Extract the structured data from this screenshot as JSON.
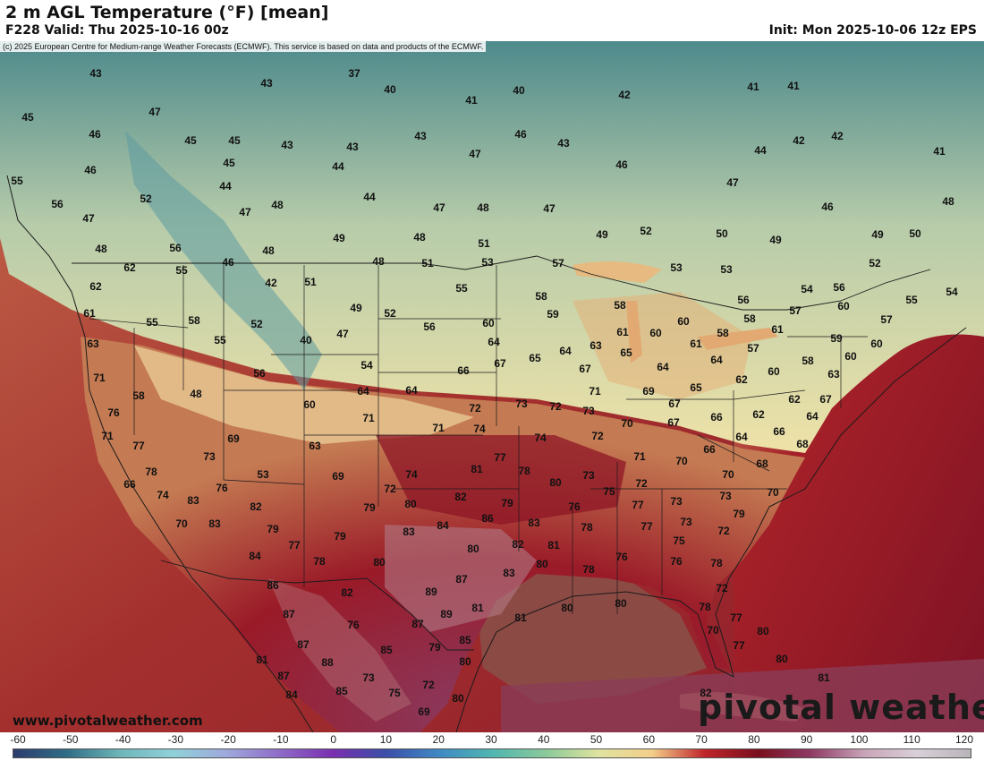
{
  "header": {
    "title": "2 m AGL Temperature (°F) [mean]",
    "valid": "F228 Valid: Thu 2025-10-16 00z",
    "init": "Init: Mon 2025-10-06 12z EPS"
  },
  "copyright": "(c) 2025 European Centre for Medium-range Weather Forecasts (ECMWF). This service is based on data and products of the ECMWF.",
  "footer": {
    "website": "www.pivotalweather.com",
    "logo": "pivotal weather"
  },
  "colors": {
    "ocean_atlantic": "#8a1624",
    "ocean_pacific": "#9a2a2e",
    "gulf": "#8c4a44",
    "cold": "#3f7a86",
    "cool": "#cfd6a0",
    "mild": "#f0e2a6",
    "warm": "#a0141c",
    "hot": "#8e3a5e"
  },
  "colorbar": {
    "labels": [
      "-60",
      "-50",
      "-40",
      "-30",
      "-20",
      "-10",
      "0",
      "10",
      "20",
      "30",
      "40",
      "50",
      "60",
      "70",
      "80",
      "90",
      "100",
      "110",
      "120"
    ],
    "stops": [
      "#2c3b6e",
      "#2f6e86",
      "#6fb5b8",
      "#8fd1d8",
      "#9fa9dc",
      "#8e6cc8",
      "#7a2fb0",
      "#3a4ea8",
      "#3f88c4",
      "#4fb6b0",
      "#8ac99a",
      "#dfe3a0",
      "#f3cf8a",
      "#c0252a",
      "#7a0e1e",
      "#8e3a64",
      "#c9a4b8",
      "#d9d0d8",
      "#b8b4b8"
    ]
  },
  "map": {
    "temperature_labels": [
      [
        "43",
        107,
        82
      ],
      [
        "37",
        396,
        82
      ],
      [
        "43",
        298,
        93
      ],
      [
        "40",
        436,
        100
      ],
      [
        "40",
        580,
        101
      ],
      [
        "42",
        698,
        106
      ],
      [
        "41",
        842,
        97
      ],
      [
        "41",
        887,
        96
      ],
      [
        "45",
        31,
        131
      ],
      [
        "47",
        173,
        125
      ],
      [
        "41",
        527,
        112
      ],
      [
        "46",
        106,
        150
      ],
      [
        "45",
        213,
        157
      ],
      [
        "45",
        262,
        157
      ],
      [
        "43",
        321,
        162
      ],
      [
        "43",
        394,
        164
      ],
      [
        "43",
        470,
        152
      ],
      [
        "46",
        582,
        150
      ],
      [
        "43",
        630,
        160
      ],
      [
        "42",
        893,
        157
      ],
      [
        "42",
        936,
        152
      ],
      [
        "41",
        1050,
        169
      ],
      [
        "46",
        101,
        190
      ],
      [
        "45",
        256,
        182
      ],
      [
        "44",
        378,
        186
      ],
      [
        "47",
        531,
        172
      ],
      [
        "46",
        695,
        184
      ],
      [
        "44",
        850,
        168
      ],
      [
        "47",
        819,
        204
      ],
      [
        "55",
        19,
        202
      ],
      [
        "52",
        163,
        222
      ],
      [
        "44",
        252,
        208
      ],
      [
        "44",
        413,
        220
      ],
      [
        "47",
        491,
        232
      ],
      [
        "48",
        540,
        232
      ],
      [
        "47",
        614,
        233
      ],
      [
        "46",
        925,
        231
      ],
      [
        "48",
        1060,
        225
      ],
      [
        "56",
        64,
        228
      ],
      [
        "47",
        99,
        244
      ],
      [
        "47",
        274,
        237
      ],
      [
        "48",
        310,
        229
      ],
      [
        "48",
        113,
        278
      ],
      [
        "56",
        196,
        277
      ],
      [
        "48",
        300,
        280
      ],
      [
        "49",
        379,
        266
      ],
      [
        "48",
        469,
        265
      ],
      [
        "51",
        541,
        272
      ],
      [
        "49",
        673,
        262
      ],
      [
        "52",
        722,
        258
      ],
      [
        "50",
        807,
        261
      ],
      [
        "49",
        867,
        268
      ],
      [
        "49",
        981,
        262
      ],
      [
        "50",
        1023,
        261
      ],
      [
        "62",
        145,
        299
      ],
      [
        "55",
        203,
        302
      ],
      [
        "46",
        255,
        293
      ],
      [
        "48",
        423,
        292
      ],
      [
        "51",
        478,
        294
      ],
      [
        "53",
        545,
        293
      ],
      [
        "57",
        624,
        294
      ],
      [
        "53",
        756,
        299
      ],
      [
        "53",
        812,
        301
      ],
      [
        "52",
        978,
        294
      ],
      [
        "62",
        107,
        320
      ],
      [
        "42",
        303,
        316
      ],
      [
        "51",
        347,
        315
      ],
      [
        "55",
        516,
        322
      ],
      [
        "58",
        605,
        331
      ],
      [
        "54",
        902,
        323
      ],
      [
        "56",
        938,
        321
      ],
      [
        "55",
        1019,
        335
      ],
      [
        "54",
        1064,
        326
      ],
      [
        "61",
        100,
        350
      ],
      [
        "55",
        170,
        360
      ],
      [
        "58",
        217,
        358
      ],
      [
        "52",
        287,
        362
      ],
      [
        "49",
        398,
        344
      ],
      [
        "52",
        436,
        350
      ],
      [
        "56",
        480,
        365
      ],
      [
        "60",
        546,
        361
      ],
      [
        "59",
        618,
        351
      ],
      [
        "58",
        693,
        341
      ],
      [
        "56",
        831,
        335
      ],
      [
        "57",
        889,
        347
      ],
      [
        "60",
        943,
        342
      ],
      [
        "57",
        991,
        357
      ],
      [
        "63",
        104,
        384
      ],
      [
        "55",
        246,
        380
      ],
      [
        "40",
        342,
        380
      ],
      [
        "47",
        383,
        373
      ],
      [
        "64",
        552,
        382
      ],
      [
        "65",
        598,
        400
      ],
      [
        "64",
        632,
        392
      ],
      [
        "63",
        666,
        386
      ],
      [
        "61",
        696,
        371
      ],
      [
        "60",
        733,
        372
      ],
      [
        "60",
        764,
        359
      ],
      [
        "58",
        838,
        356
      ],
      [
        "58",
        808,
        372
      ],
      [
        "61",
        869,
        368
      ],
      [
        "59",
        935,
        378
      ],
      [
        "60",
        980,
        384
      ],
      [
        "71",
        111,
        422
      ],
      [
        "54",
        410,
        408
      ],
      [
        "66",
        518,
        414
      ],
      [
        "67",
        559,
        406
      ],
      [
        "67",
        654,
        412
      ],
      [
        "65",
        700,
        394
      ],
      [
        "64",
        741,
        410
      ],
      [
        "61",
        778,
        384
      ],
      [
        "64",
        801,
        402
      ],
      [
        "57",
        842,
        389
      ],
      [
        "60",
        865,
        415
      ],
      [
        "58",
        903,
        403
      ],
      [
        "60",
        951,
        398
      ],
      [
        "63",
        932,
        418
      ],
      [
        "58",
        155,
        442
      ],
      [
        "48",
        219,
        440
      ],
      [
        "56",
        290,
        417
      ],
      [
        "64",
        406,
        437
      ],
      [
        "64",
        460,
        436
      ],
      [
        "71",
        665,
        437
      ],
      [
        "69",
        725,
        437
      ],
      [
        "65",
        778,
        433
      ],
      [
        "62",
        829,
        424
      ],
      [
        "62",
        888,
        446
      ],
      [
        "67",
        923,
        446
      ],
      [
        "76",
        127,
        461
      ],
      [
        "60",
        346,
        452
      ],
      [
        "71",
        412,
        467
      ],
      [
        "72",
        531,
        456
      ],
      [
        "73",
        583,
        451
      ],
      [
        "72",
        621,
        454
      ],
      [
        "73",
        658,
        459
      ],
      [
        "70",
        701,
        473
      ],
      [
        "67",
        754,
        451
      ],
      [
        "66",
        801,
        466
      ],
      [
        "62",
        848,
        463
      ],
      [
        "64",
        908,
        465
      ],
      [
        "71",
        120,
        487
      ],
      [
        "69",
        261,
        490
      ],
      [
        "71",
        490,
        478
      ],
      [
        "74",
        536,
        479
      ],
      [
        "74",
        604,
        489
      ],
      [
        "72",
        668,
        487
      ],
      [
        "67",
        753,
        472
      ],
      [
        "64",
        829,
        488
      ],
      [
        "66",
        871,
        482
      ],
      [
        "68",
        897,
        496
      ],
      [
        "77",
        155,
        498
      ],
      [
        "73",
        234,
        510
      ],
      [
        "63",
        352,
        498
      ],
      [
        "71",
        715,
        510
      ],
      [
        "70",
        762,
        515
      ],
      [
        "66",
        793,
        502
      ],
      [
        "70",
        814,
        530
      ],
      [
        "68",
        852,
        518
      ],
      [
        "78",
        169,
        527
      ],
      [
        "53",
        294,
        530
      ],
      [
        "69",
        378,
        532
      ],
      [
        "74",
        460,
        530
      ],
      [
        "81",
        533,
        524
      ],
      [
        "77",
        559,
        511
      ],
      [
        "78",
        586,
        526
      ],
      [
        "80",
        621,
        539
      ],
      [
        "73",
        658,
        531
      ],
      [
        "75",
        681,
        549
      ],
      [
        "72",
        717,
        540
      ],
      [
        "73",
        756,
        560
      ],
      [
        "73",
        811,
        554
      ],
      [
        "70",
        864,
        550
      ],
      [
        "66",
        145,
        541
      ],
      [
        "76",
        248,
        545
      ],
      [
        "72",
        436,
        546
      ],
      [
        "82",
        515,
        555
      ],
      [
        "79",
        567,
        562
      ],
      [
        "74",
        182,
        553
      ],
      [
        "83",
        216,
        559
      ],
      [
        "82",
        286,
        566
      ],
      [
        "79",
        413,
        567
      ],
      [
        "80",
        459,
        563
      ],
      [
        "84",
        495,
        587
      ],
      [
        "86",
        545,
        579
      ],
      [
        "76",
        642,
        566
      ],
      [
        "77",
        713,
        564
      ],
      [
        "73",
        767,
        583
      ],
      [
        "79",
        826,
        574
      ],
      [
        "70",
        203,
        585
      ],
      [
        "83",
        240,
        585
      ],
      [
        "79",
        305,
        591
      ],
      [
        "83",
        457,
        594
      ],
      [
        "83",
        597,
        584
      ],
      [
        "78",
        656,
        589
      ],
      [
        "77",
        723,
        588
      ],
      [
        "72",
        809,
        593
      ],
      [
        "77",
        329,
        609
      ],
      [
        "79",
        380,
        599
      ],
      [
        "80",
        529,
        613
      ],
      [
        "82",
        579,
        608
      ],
      [
        "81",
        619,
        609
      ],
      [
        "75",
        759,
        604
      ],
      [
        "84",
        285,
        621
      ],
      [
        "78",
        357,
        627
      ],
      [
        "80",
        424,
        628
      ],
      [
        "80",
        606,
        630
      ],
      [
        "78",
        658,
        636
      ],
      [
        "76",
        695,
        622
      ],
      [
        "76",
        756,
        627
      ],
      [
        "78",
        801,
        629
      ],
      [
        "86",
        305,
        654
      ],
      [
        "82",
        388,
        662
      ],
      [
        "87",
        516,
        647
      ],
      [
        "83",
        569,
        640
      ],
      [
        "89",
        482,
        661
      ],
      [
        "72",
        807,
        657
      ],
      [
        "87",
        323,
        686
      ],
      [
        "76",
        395,
        698
      ],
      [
        "87",
        467,
        697
      ],
      [
        "89",
        499,
        686
      ],
      [
        "81",
        534,
        679
      ],
      [
        "81",
        582,
        690
      ],
      [
        "80",
        634,
        679
      ],
      [
        "80",
        694,
        674
      ],
      [
        "78",
        788,
        678
      ],
      [
        "77",
        823,
        690
      ],
      [
        "87",
        339,
        720
      ],
      [
        "85",
        432,
        726
      ],
      [
        "79",
        486,
        723
      ],
      [
        "85",
        520,
        715
      ],
      [
        "70",
        797,
        704
      ],
      [
        "80",
        853,
        705
      ],
      [
        "77",
        826,
        721
      ],
      [
        "81",
        293,
        737
      ],
      [
        "88",
        366,
        740
      ],
      [
        "80",
        520,
        739
      ],
      [
        "80",
        874,
        736
      ],
      [
        "87",
        317,
        755
      ],
      [
        "73",
        412,
        757
      ],
      [
        "72",
        479,
        765
      ],
      [
        "81",
        921,
        757
      ],
      [
        "84",
        326,
        776
      ],
      [
        "85",
        382,
        772
      ],
      [
        "75",
        441,
        774
      ],
      [
        "80",
        512,
        780
      ],
      [
        "82",
        789,
        774
      ],
      [
        "69",
        474,
        795
      ]
    ]
  }
}
